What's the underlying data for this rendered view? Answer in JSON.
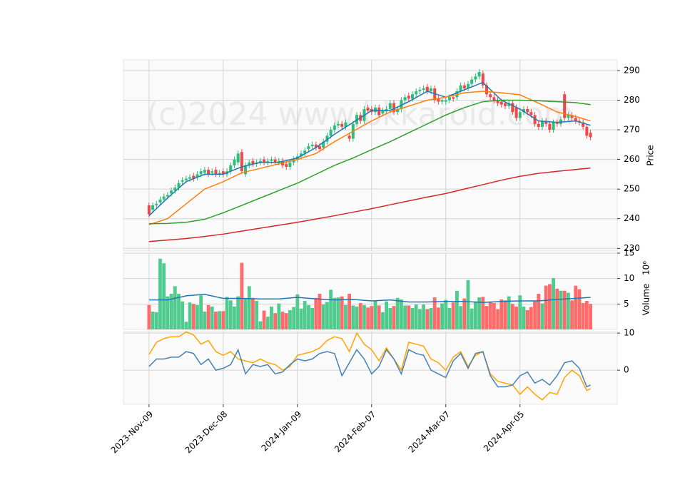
{
  "chart_data": [
    {
      "type": "candlestick",
      "watermark": "(c)2024 www.bkkaroid.com",
      "ylabel": "Price",
      "up_color": "#2ebd7a",
      "down_color": "#f04848",
      "categories": [
        "2023-Nov-09",
        null,
        null,
        null,
        null,
        null,
        null,
        null,
        null,
        null,
        null,
        null,
        null,
        null,
        null,
        null,
        null,
        null,
        null,
        null,
        "2023-Dec-08",
        null,
        null,
        null,
        null,
        null,
        null,
        null,
        null,
        null,
        null,
        null,
        null,
        null,
        null,
        null,
        null,
        null,
        null,
        null,
        "2024-Jan-09",
        null,
        null,
        null,
        null,
        null,
        null,
        null,
        null,
        null,
        null,
        null,
        null,
        null,
        null,
        null,
        null,
        null,
        null,
        null,
        "2024-Feb-07",
        null,
        null,
        null,
        null,
        null,
        null,
        null,
        null,
        null,
        null,
        null,
        null,
        null,
        null,
        null,
        null,
        null,
        null,
        null,
        "2024-Mar-07",
        null,
        null,
        null,
        null,
        null,
        null,
        null,
        null,
        null,
        null,
        null,
        null,
        null,
        null,
        null,
        null,
        null,
        null,
        null,
        "2024-Apr-05",
        null,
        null,
        null,
        null,
        null,
        null,
        null,
        null,
        null,
        null,
        null,
        null,
        null,
        null,
        null,
        null,
        null,
        null,
        null
      ],
      "xlim": [
        -6.9,
        126.2
      ],
      "ylim": [
        229.1,
        293.6
      ],
      "yticks": [
        230,
        240,
        250,
        260,
        270,
        280,
        290
      ],
      "grid": true,
      "open": [
        244.5,
        243,
        244.5,
        245.5,
        246.5,
        247.5,
        248.5,
        249.5,
        250.5,
        252.5,
        253,
        253.5,
        254.5,
        254,
        255,
        255.5,
        256.5,
        255.5,
        256.5,
        255,
        256,
        255,
        256,
        258,
        259,
        262.5,
        255,
        258,
        259.5,
        258.5,
        259,
        260,
        259,
        259.5,
        260,
        259,
        259.5,
        258.5,
        257.5,
        259,
        260,
        261,
        262,
        263.5,
        264.5,
        265,
        264.5,
        264,
        266,
        268,
        270,
        271.5,
        272,
        271,
        268,
        267,
        272,
        275,
        273,
        277.5,
        277,
        276,
        277.5,
        275.5,
        276.5,
        277,
        279,
        276,
        277,
        280,
        281.5,
        280.5,
        282,
        283,
        283.5,
        284.5,
        283,
        284,
        280.5,
        279.5,
        279.5,
        280,
        281,
        281,
        283,
        285,
        284,
        285.5,
        287,
        288,
        289,
        285,
        282,
        281,
        280,
        279.5,
        279,
        278,
        279,
        277.5,
        274,
        276,
        277,
        276,
        275,
        272,
        271,
        273,
        272,
        270,
        272.5,
        272,
        282,
        274,
        275,
        274,
        273,
        272.5,
        271,
        269
      ],
      "high": [
        245.5,
        245.5,
        246,
        247.5,
        248.5,
        249,
        250.5,
        251.5,
        253,
        254,
        254.5,
        255,
        255.5,
        256,
        257,
        257.5,
        257.5,
        257,
        257.5,
        256.5,
        257,
        257,
        259,
        261,
        263,
        263.5,
        259,
        260,
        260.5,
        260,
        260.5,
        261,
        260.5,
        261,
        261,
        260.5,
        260.5,
        259.5,
        260,
        261,
        262,
        263,
        264,
        265.5,
        266,
        266,
        265.5,
        267,
        269,
        271,
        272.5,
        273,
        273,
        273.5,
        269,
        273,
        276,
        276,
        278,
        278.5,
        278,
        278.5,
        278.5,
        277.5,
        278,
        280,
        280,
        278,
        281,
        282,
        282.5,
        283,
        284,
        284.5,
        285,
        285.5,
        285,
        285,
        281.5,
        281,
        281,
        282,
        282,
        284,
        286,
        286,
        286.5,
        288,
        289,
        290.5,
        290,
        286,
        283,
        282,
        281,
        280.5,
        280,
        280,
        280,
        278.5,
        277,
        278,
        278,
        277,
        276,
        273,
        274,
        274,
        273,
        273.5,
        273.5,
        274.5,
        283,
        276,
        276,
        275,
        274,
        273.5,
        272,
        270
      ],
      "low": [
        240.5,
        242,
        243.5,
        244.5,
        245.5,
        246.5,
        247.5,
        248.5,
        249.5,
        251.5,
        252,
        252.5,
        252.5,
        253,
        254,
        254.5,
        254,
        254.5,
        254,
        254,
        254,
        254,
        255,
        257,
        258,
        255,
        254,
        257,
        257.5,
        257.5,
        258,
        258,
        258,
        258.5,
        258,
        258,
        257,
        256.5,
        256.5,
        258,
        259,
        260,
        261,
        262.5,
        263.5,
        263,
        262.5,
        263,
        265,
        267,
        269,
        270.5,
        270,
        270,
        266,
        266,
        271,
        272,
        272,
        275.5,
        275,
        275,
        274,
        274.5,
        275.5,
        276,
        275,
        275,
        276,
        279,
        279.5,
        279.5,
        281,
        282,
        282.5,
        282,
        282,
        279,
        278.5,
        278.5,
        278.5,
        279,
        279.5,
        280,
        282,
        283,
        283,
        284.5,
        286,
        287,
        284,
        281,
        280,
        279,
        278,
        277.5,
        277,
        277,
        275,
        273,
        273,
        275,
        275,
        274,
        271,
        270,
        270,
        271,
        269,
        269,
        271,
        271,
        273,
        273,
        273,
        272,
        271.5,
        270,
        267,
        266.5
      ],
      "close": [
        241.5,
        244.5,
        245,
        246.5,
        247.5,
        248,
        249.5,
        250.5,
        252,
        253,
        253.5,
        254,
        253.5,
        255,
        256,
        256.5,
        255,
        256,
        255,
        255.5,
        255,
        256,
        258,
        260,
        262,
        256,
        258,
        259,
        258.5,
        259,
        259.5,
        259,
        259.5,
        260,
        259,
        259.5,
        258,
        257.5,
        259,
        260,
        261,
        262,
        263,
        264.5,
        265,
        264,
        263.5,
        266,
        268,
        270,
        271.5,
        272,
        271,
        272.5,
        267,
        272,
        275,
        273,
        277,
        276.5,
        276,
        277.5,
        275,
        276.5,
        277,
        279,
        276,
        277,
        280,
        281,
        280.5,
        282,
        283,
        283.5,
        284,
        283,
        284,
        280,
        279.5,
        280,
        280,
        281,
        280.5,
        283,
        285,
        284,
        285.5,
        287,
        288,
        289.5,
        285,
        282,
        281,
        280,
        279,
        278.5,
        278,
        279,
        276,
        274,
        276,
        277,
        276,
        275,
        272,
        271,
        273,
        272,
        270,
        272.5,
        272,
        273.5,
        274,
        275,
        274,
        273,
        272.5,
        271,
        268,
        267.5
      ],
      "series": [
        {
          "color": "#1f77b4",
          "x": [
            0,
            5,
            10,
            15,
            20,
            25,
            30,
            35,
            40,
            45,
            50,
            55,
            60,
            65,
            70,
            75,
            80,
            85,
            90,
            95,
            100,
            105,
            110,
            115,
            119
          ],
          "values": [
            241,
            247,
            252.5,
            255,
            255,
            257.5,
            259,
            259,
            260.5,
            264,
            268.5,
            272.5,
            276.5,
            276.5,
            279.5,
            283,
            281,
            283.5,
            286,
            280,
            277,
            273,
            272.5,
            273,
            271.5
          ]
        },
        {
          "color": "#ff7f0e",
          "x": [
            0,
            5,
            10,
            15,
            20,
            25,
            30,
            35,
            40,
            45,
            50,
            55,
            60,
            65,
            70,
            75,
            80,
            85,
            90,
            95,
            100,
            105,
            110,
            115,
            119
          ],
          "values": [
            238,
            240,
            245,
            250,
            252.5,
            255.5,
            257,
            258.5,
            260,
            262,
            266,
            269.5,
            273,
            276,
            278,
            280,
            281,
            282.5,
            283,
            282.5,
            281.8,
            279,
            276,
            274.5,
            273
          ]
        },
        {
          "color": "#2ca02c",
          "x": [
            0,
            5,
            10,
            15,
            20,
            25,
            30,
            35,
            40,
            45,
            50,
            55,
            60,
            65,
            70,
            75,
            80,
            85,
            90,
            95,
            100,
            105,
            110,
            115,
            119
          ],
          "values": [
            238.3,
            238.4,
            238.8,
            239.8,
            242,
            244.5,
            247,
            249.5,
            252,
            255,
            258,
            260.5,
            263.3,
            266,
            269,
            272,
            275,
            277.5,
            279.5,
            280,
            280,
            279.8,
            279.5,
            279.2,
            278.5
          ]
        },
        {
          "color": "#d62728",
          "x": [
            0,
            5,
            10,
            15,
            20,
            25,
            30,
            35,
            40,
            45,
            50,
            55,
            60,
            65,
            70,
            75,
            80,
            85,
            90,
            95,
            100,
            105,
            110,
            115,
            119
          ],
          "values": [
            232.3,
            232.8,
            233.3,
            234,
            234.8,
            235.8,
            236.8,
            237.8,
            238.8,
            239.9,
            241,
            242.2,
            243.4,
            244.7,
            246,
            247.3,
            248.5,
            250,
            251.5,
            253,
            254.3,
            255.3,
            256,
            256.6,
            257.1
          ]
        }
      ]
    },
    {
      "type": "bar",
      "ylabel": "Volume",
      "offset_label": "10⁶",
      "up_color": "#4fcb8e",
      "down_color": "#ff6b6b",
      "ylim": [
        0,
        15
      ],
      "yticks": [
        5,
        10,
        15
      ],
      "grid": true,
      "values": [
        4.8,
        3.5,
        3.4,
        13.9,
        13.0,
        6.5,
        7.0,
        8.5,
        7.0,
        5.5,
        1.5,
        5.3,
        5.0,
        4.8,
        6.7,
        3.5,
        4.8,
        4.5,
        3.5,
        3.6,
        3.6,
        6.4,
        5.7,
        4.5,
        6.5,
        13.1,
        6.0,
        8.5,
        6.2,
        5.6,
        1.6,
        3.7,
        2.5,
        4.5,
        3.2,
        5.1,
        3.5,
        3.2,
        3.8,
        4.4,
        6.9,
        4.1,
        5.6,
        4.8,
        4.2,
        6.2,
        7.0,
        4.9,
        5.4,
        7.8,
        6.2,
        6.3,
        6.5,
        4.8,
        7.0,
        4.7,
        4.5,
        5.2,
        4.8,
        4.3,
        4.6,
        5.7,
        4.7,
        3.4,
        5.5,
        4.2,
        4.6,
        6.2,
        5.9,
        4.7,
        4.7,
        4.2,
        4.9,
        4.0,
        4.9,
        4.0,
        4.2,
        6.3,
        4.3,
        5.1,
        5.8,
        4.2,
        5.3,
        7.6,
        4.6,
        6.1,
        9.7,
        4.1,
        5.5,
        6.3,
        6.4,
        4.6,
        5.5,
        5.2,
        4.0,
        5.9,
        5.7,
        6.5,
        5.0,
        4.5,
        6.7,
        4.5,
        3.8,
        4.4,
        5.5,
        7.0,
        5.1,
        8.6,
        8.9,
        10.1,
        8.0,
        7.6,
        7.6,
        7.2,
        5.7,
        8.6,
        7.9,
        5.2,
        5.6,
        5.0
      ],
      "series": [
        {
          "color": "#1f77b4",
          "x": [
            0,
            5,
            10,
            15,
            20,
            25,
            30,
            35,
            40,
            45,
            50,
            55,
            60,
            65,
            70,
            75,
            80,
            85,
            90,
            95,
            100,
            105,
            110,
            115,
            119
          ],
          "values": [
            5.8,
            5.8,
            6.6,
            6.9,
            6.1,
            6.1,
            6.0,
            6.0,
            6.3,
            6.0,
            5.8,
            5.9,
            5.6,
            5.8,
            5.4,
            5.4,
            5.5,
            5.5,
            5.3,
            5.5,
            5.6,
            5.6,
            5.9,
            6.1,
            6.3
          ]
        }
      ]
    },
    {
      "type": "line",
      "ylim": [
        -9.2,
        10.4
      ],
      "yticks": [
        0,
        10
      ],
      "grid": true,
      "series": [
        {
          "color": "#ffa500",
          "x": [
            0,
            2,
            4,
            6,
            8,
            10,
            12,
            14,
            16,
            18,
            20,
            22,
            24,
            26,
            28,
            30,
            32,
            34,
            36,
            38,
            40,
            42,
            44,
            46,
            48,
            50,
            52,
            54,
            56,
            58,
            60,
            62,
            64,
            66,
            68,
            70,
            72,
            74,
            76,
            78,
            80,
            82,
            84,
            86,
            88,
            90,
            92,
            94,
            96,
            98,
            100,
            102,
            104,
            106,
            108,
            110,
            112,
            114,
            116,
            118,
            119
          ],
          "values": [
            4.2,
            7.5,
            8.5,
            9,
            9,
            10.3,
            9.5,
            7,
            8,
            5,
            4,
            5,
            3,
            2.5,
            2,
            3,
            2,
            1.5,
            0,
            1,
            4,
            4.5,
            5,
            6,
            8,
            9,
            8.5,
            5,
            10,
            7,
            5.5,
            2.5,
            6,
            3,
            0,
            7.5,
            7,
            6.5,
            3,
            2,
            0,
            3.5,
            5,
            1,
            4,
            5,
            -1,
            -3,
            -3.5,
            -4,
            -6.5,
            -4.5,
            -6.5,
            -8,
            -6,
            -6.5,
            -2,
            0,
            -1.5,
            -5.5,
            -5
          ]
        },
        {
          "color": "#4682b4",
          "x": [
            0,
            2,
            4,
            6,
            8,
            10,
            12,
            14,
            16,
            18,
            20,
            22,
            24,
            26,
            28,
            30,
            32,
            34,
            36,
            38,
            40,
            42,
            44,
            46,
            48,
            50,
            52,
            54,
            56,
            58,
            60,
            62,
            64,
            66,
            68,
            70,
            72,
            74,
            76,
            78,
            80,
            82,
            84,
            86,
            88,
            90,
            92,
            94,
            96,
            98,
            100,
            102,
            104,
            106,
            108,
            110,
            112,
            114,
            116,
            118,
            119
          ],
          "values": [
            1,
            3,
            3,
            3.5,
            3.5,
            5,
            4.5,
            1.5,
            3,
            0,
            0.5,
            1.5,
            5.5,
            -1,
            1.5,
            1,
            1.5,
            -1,
            -0.5,
            1.5,
            3,
            2.5,
            3,
            4.5,
            5,
            4.5,
            -1.5,
            2,
            5.5,
            3,
            -1,
            1,
            5.5,
            3,
            -1,
            5.5,
            4.5,
            4,
            0,
            -1,
            -2,
            2.5,
            4.5,
            0.5,
            4.5,
            5,
            -1.5,
            -4.5,
            -4.5,
            -4,
            -1.5,
            -0.5,
            -3.5,
            -2.5,
            -4,
            -1.5,
            2,
            2.5,
            0.5,
            -4.5,
            -4
          ]
        }
      ]
    }
  ]
}
